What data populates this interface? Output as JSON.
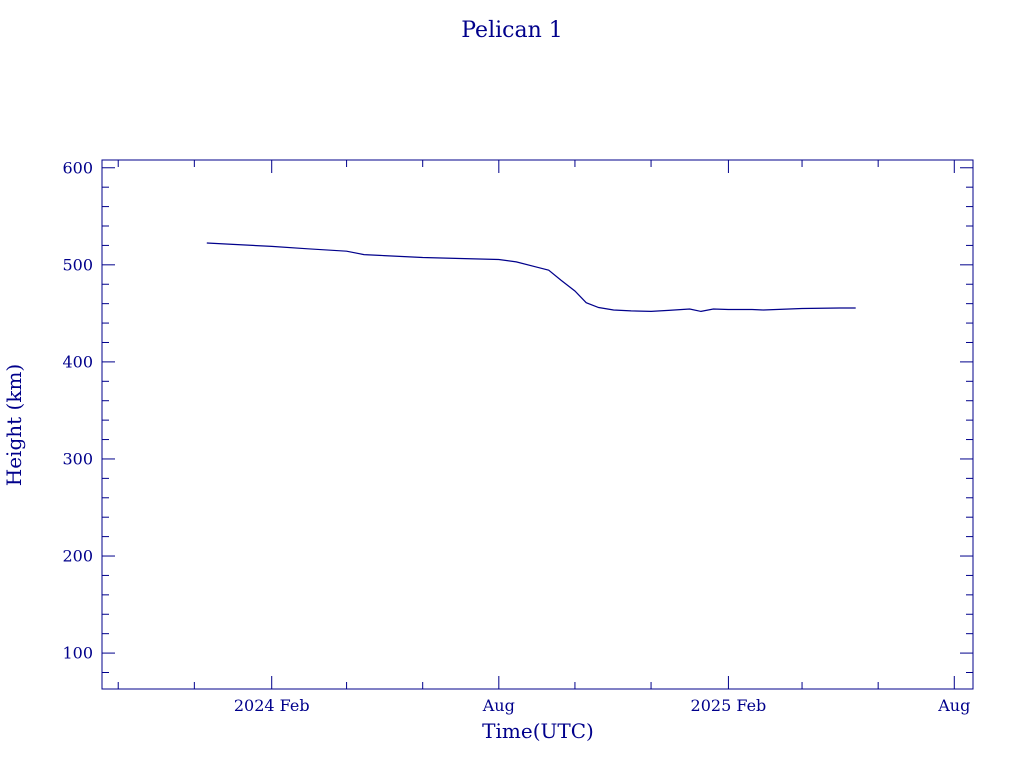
{
  "chart_data": {
    "type": "line",
    "title": "Pelican 1",
    "xlabel": "Time(UTC)",
    "ylabel": "Height (km)",
    "ylim": [
      63,
      608
    ],
    "xlim": [
      "2023-09-18",
      "2025-08-16"
    ],
    "y_ticks": [
      100,
      200,
      300,
      400,
      500,
      600
    ],
    "x_ticks": [
      {
        "date": "2024-02-01",
        "label": "2024 Feb"
      },
      {
        "date": "2024-08-01",
        "label": "Aug"
      },
      {
        "date": "2025-02-01",
        "label": "2025 Feb"
      },
      {
        "date": "2025-08-01",
        "label": "Aug"
      }
    ],
    "grid": false,
    "line_color": "#00008b",
    "series": [
      {
        "x": [
          "2023-12-11",
          "2024-01-01",
          "2024-02-01",
          "2024-03-01",
          "2024-04-01",
          "2024-04-15",
          "2024-05-01",
          "2024-06-01",
          "2024-07-01",
          "2024-08-01",
          "2024-08-15",
          "2024-09-01",
          "2024-09-10",
          "2024-09-20",
          "2024-10-01",
          "2024-10-10",
          "2024-10-20",
          "2024-11-01",
          "2024-11-15",
          "2024-12-01",
          "2024-12-15",
          "2025-01-01",
          "2025-01-10",
          "2025-01-20",
          "2025-02-01",
          "2025-02-20",
          "2025-03-01",
          "2025-04-01",
          "2025-05-01",
          "2025-05-14"
        ],
        "y": [
          522.5,
          521,
          519,
          516.5,
          514,
          510.5,
          509.5,
          507.5,
          506.5,
          505.5,
          503,
          497.5,
          494.5,
          484,
          473,
          461,
          456,
          453.5,
          452.5,
          452,
          453,
          454.5,
          452,
          454.5,
          454,
          454,
          453.5,
          455,
          455.5,
          455.5
        ]
      }
    ]
  }
}
